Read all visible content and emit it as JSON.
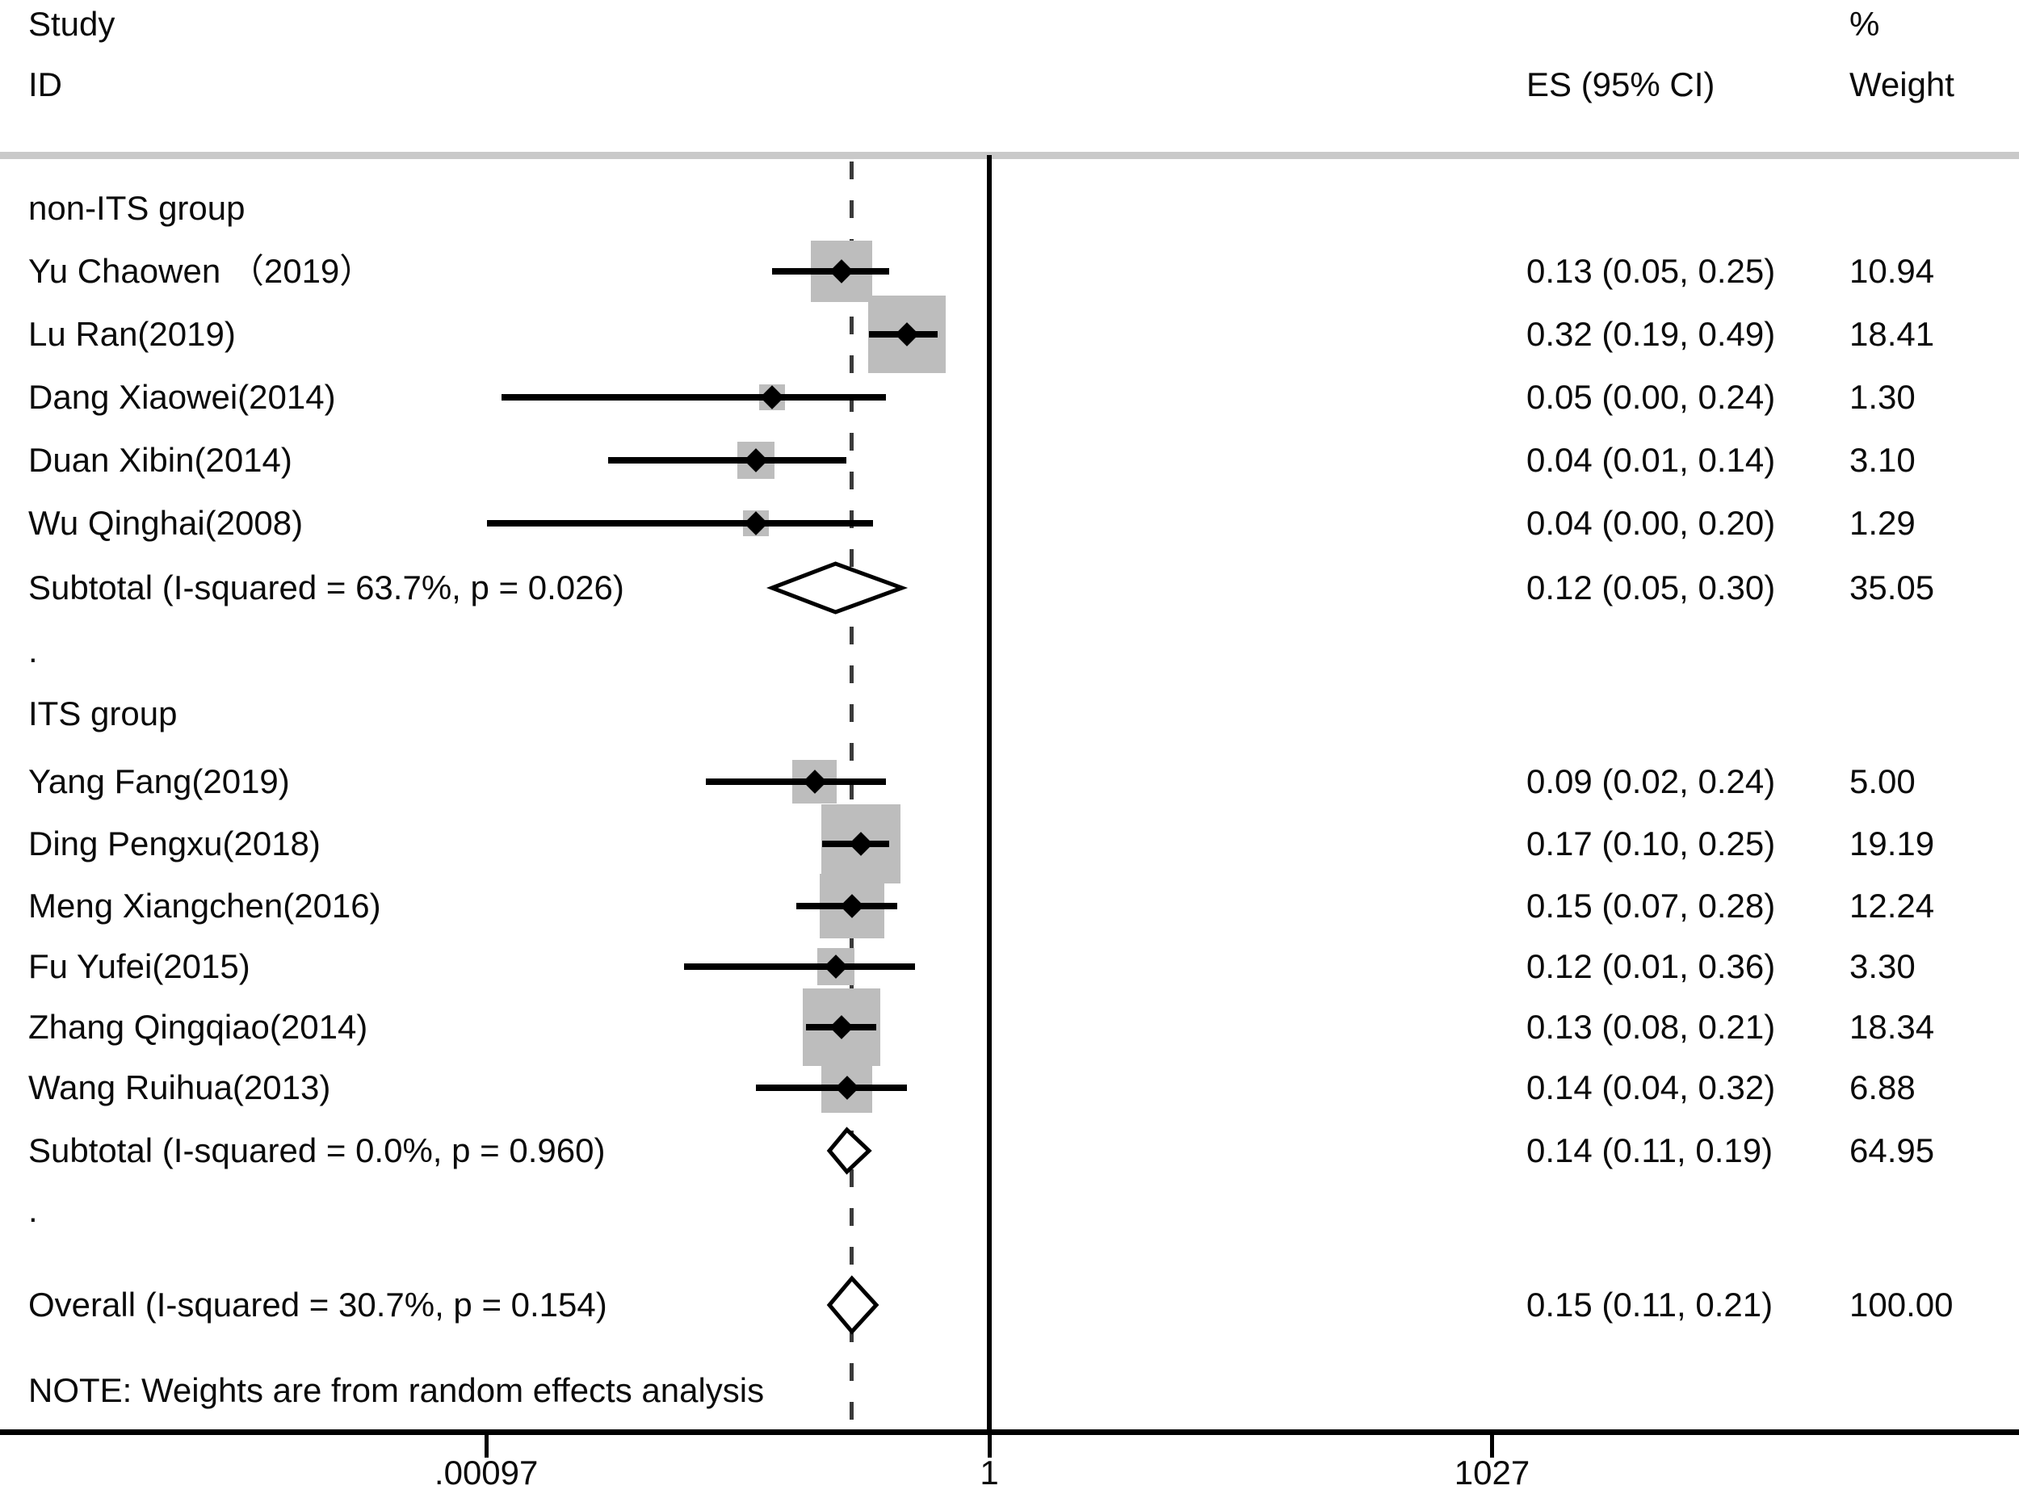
{
  "header": {
    "study_line1": "Study",
    "study_line2": "ID",
    "percent": "%",
    "es_ci": "ES (95% CI)",
    "weight": "Weight"
  },
  "note": "NOTE: Weights are from random effects analysis",
  "chart_data": {
    "type": "forest",
    "title": "",
    "x_scale": "log10",
    "axis_ticks": [
      {
        "label": ".00097",
        "value": 0.00097
      },
      {
        "label": "1",
        "value": 1
      },
      {
        "label": "1027",
        "value": 1027
      }
    ],
    "null_ref_value": 1,
    "overall_dashed_value": 0.15,
    "rows": [
      {
        "kind": "group",
        "label": "non-ITS group"
      },
      {
        "kind": "study",
        "label": "Yu Chaowen （2019）",
        "es": 0.13,
        "ci": [
          0.05,
          0.25
        ],
        "draw_ci": [
          0.05,
          0.25
        ],
        "es_text": "0.13 (0.05, 0.25)",
        "weight": 10.94,
        "weight_text": "10.94"
      },
      {
        "kind": "study",
        "label": "Lu Ran(2019)",
        "es": 0.32,
        "ci": [
          0.19,
          0.49
        ],
        "draw_ci": [
          0.19,
          0.49
        ],
        "es_text": "0.32 (0.19, 0.49)",
        "weight": 18.41,
        "weight_text": "18.41"
      },
      {
        "kind": "study",
        "label": "Dang Xiaowei(2014)",
        "es": 0.05,
        "ci": [
          0.0,
          0.24
        ],
        "draw_ci": [
          0.0012,
          0.24
        ],
        "es_text": "0.05 (0.00, 0.24)",
        "weight": 1.3,
        "weight_text": "1.30"
      },
      {
        "kind": "study",
        "label": "Duan Xibin(2014)",
        "es": 0.04,
        "ci": [
          0.01,
          0.14
        ],
        "draw_ci": [
          0.0052,
          0.14
        ],
        "es_text": "0.04 (0.01, 0.14)",
        "weight": 3.1,
        "weight_text": "3.10"
      },
      {
        "kind": "study",
        "label": "Wu Qinghai(2008)",
        "es": 0.04,
        "ci": [
          0.0,
          0.2
        ],
        "draw_ci": [
          0.00098,
          0.2
        ],
        "es_text": "0.04 (0.00, 0.20)",
        "weight": 1.29,
        "weight_text": "1.29"
      },
      {
        "kind": "subtotal",
        "label": "Subtotal  (I-squared = 63.7%, p = 0.026)",
        "es": 0.12,
        "ci": [
          0.05,
          0.3
        ],
        "es_text": "0.12 (0.05, 0.30)",
        "weight_text": "35.05"
      },
      {
        "kind": "spacer",
        "label": "."
      },
      {
        "kind": "group",
        "label": "ITS group"
      },
      {
        "kind": "study",
        "label": "Yang Fang(2019)",
        "es": 0.09,
        "ci": [
          0.02,
          0.24
        ],
        "draw_ci": [
          0.02,
          0.24
        ],
        "es_text": "0.09 (0.02, 0.24)",
        "weight": 5.0,
        "weight_text": "5.00"
      },
      {
        "kind": "study",
        "label": "Ding Pengxu(2018)",
        "es": 0.17,
        "ci": [
          0.1,
          0.25
        ],
        "draw_ci": [
          0.1,
          0.25
        ],
        "es_text": "0.17 (0.10, 0.25)",
        "weight": 19.19,
        "weight_text": "19.19"
      },
      {
        "kind": "study",
        "label": "Meng Xiangchen(2016)",
        "es": 0.15,
        "ci": [
          0.07,
          0.28
        ],
        "draw_ci": [
          0.07,
          0.28
        ],
        "es_text": "0.15 (0.07, 0.28)",
        "weight": 12.24,
        "weight_text": "12.24"
      },
      {
        "kind": "study",
        "label": "Fu Yufei(2015)",
        "es": 0.12,
        "ci": [
          0.01,
          0.36
        ],
        "draw_ci": [
          0.0149,
          0.36
        ],
        "es_text": "0.12 (0.01, 0.36)",
        "weight": 3.3,
        "weight_text": "3.30"
      },
      {
        "kind": "study",
        "label": "Zhang Qingqiao(2014)",
        "es": 0.13,
        "ci": [
          0.08,
          0.21
        ],
        "draw_ci": [
          0.08,
          0.21
        ],
        "es_text": "0.13 (0.08, 0.21)",
        "weight": 18.34,
        "weight_text": "18.34"
      },
      {
        "kind": "study",
        "label": "Wang Ruihua(2013)",
        "es": 0.14,
        "ci": [
          0.04,
          0.32
        ],
        "draw_ci": [
          0.04,
          0.32
        ],
        "es_text": "0.14 (0.04, 0.32)",
        "weight": 6.88,
        "weight_text": "6.88"
      },
      {
        "kind": "subtotal",
        "label": "Subtotal  (I-squared = 0.0%, p = 0.960)",
        "es": 0.14,
        "ci": [
          0.11,
          0.19
        ],
        "es_text": "0.14 (0.11, 0.19)",
        "weight_text": "64.95"
      },
      {
        "kind": "spacer",
        "label": "."
      },
      {
        "kind": "overall",
        "label": "Overall  (I-squared = 30.7%, p = 0.154)",
        "es": 0.15,
        "ci": [
          0.11,
          0.21
        ],
        "es_text": "0.15 (0.11, 0.21)",
        "weight_text": "100.00"
      }
    ]
  },
  "colors": {
    "weight_box": "#bdbdbd",
    "line": "#000000",
    "separator": "#c9c9c9"
  }
}
